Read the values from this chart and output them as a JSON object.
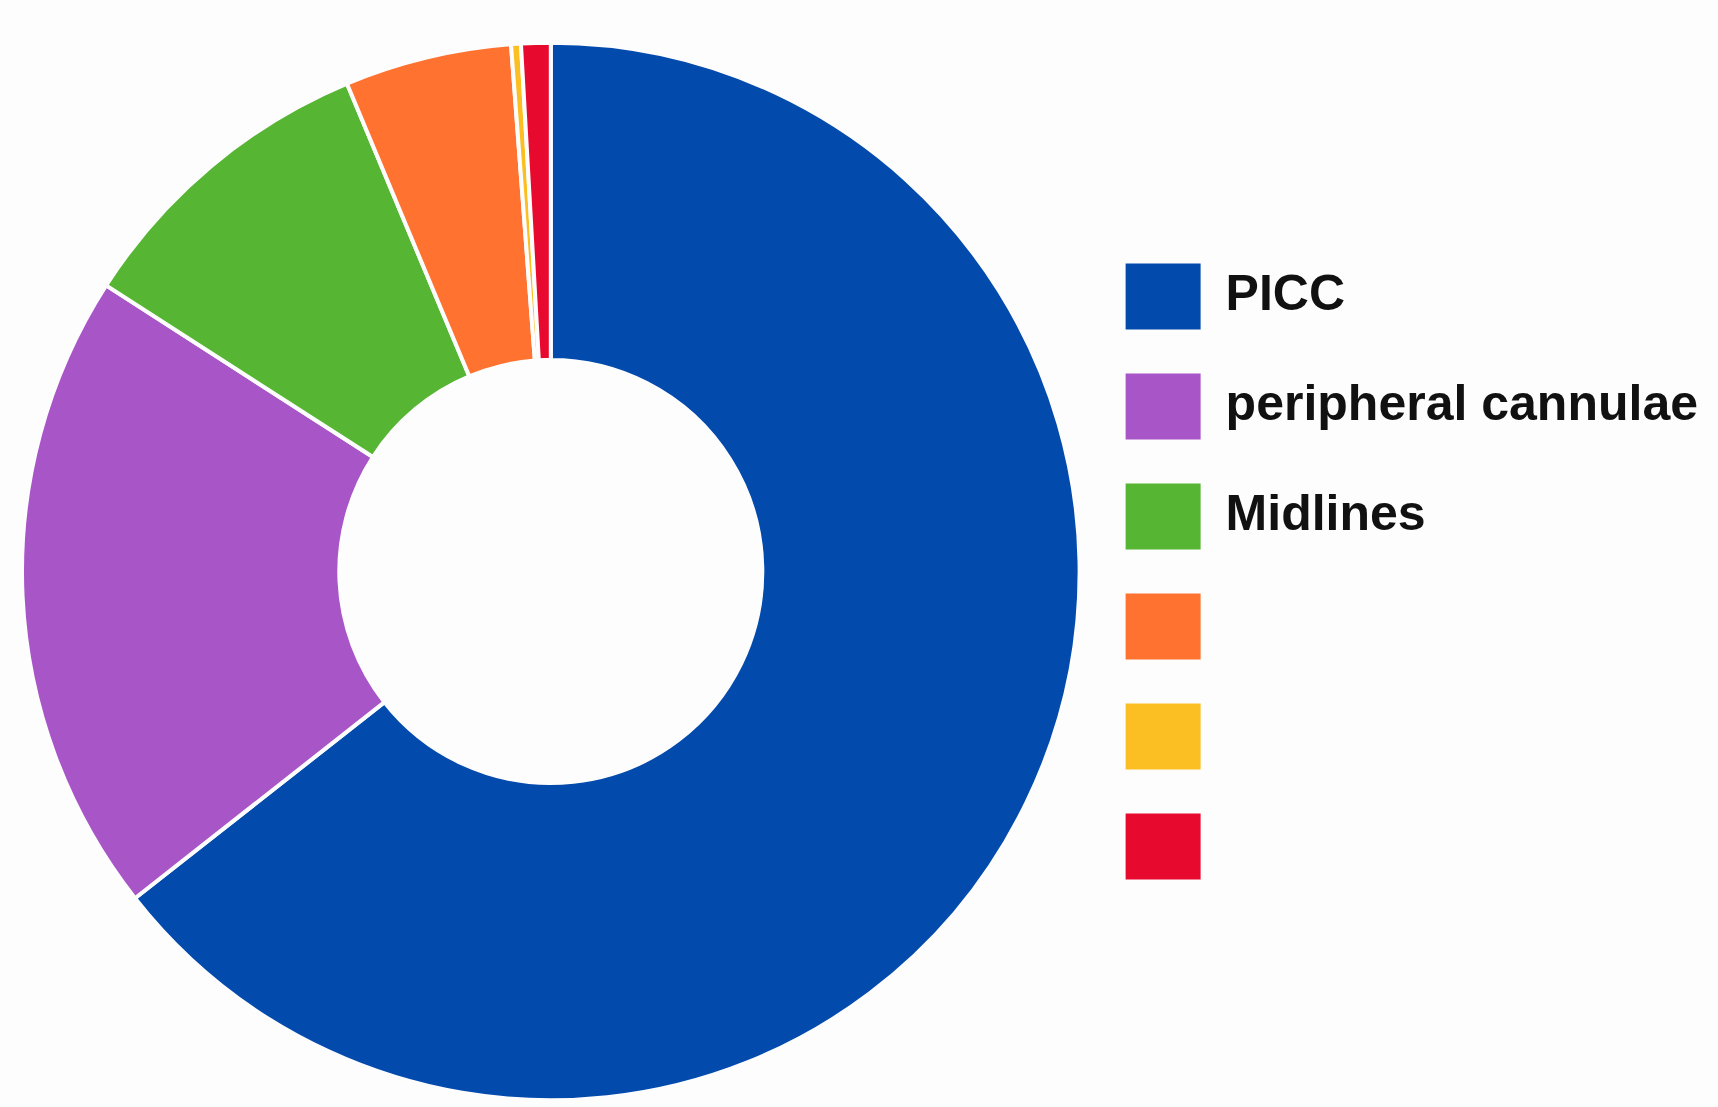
{
  "chart_data": {
    "type": "donut",
    "categories": [
      "PICC",
      "peripheral cannulae",
      "Midlines",
      null,
      null,
      null
    ],
    "values": [
      64.4,
      19.7,
      9.6,
      5.1,
      0.3,
      0.9
    ],
    "colors": [
      "#034aad",
      "#a855c8",
      "#56b533",
      "#ff7230",
      "#fbbf24",
      "#e8092e"
    ],
    "legend": "right"
  }
}
